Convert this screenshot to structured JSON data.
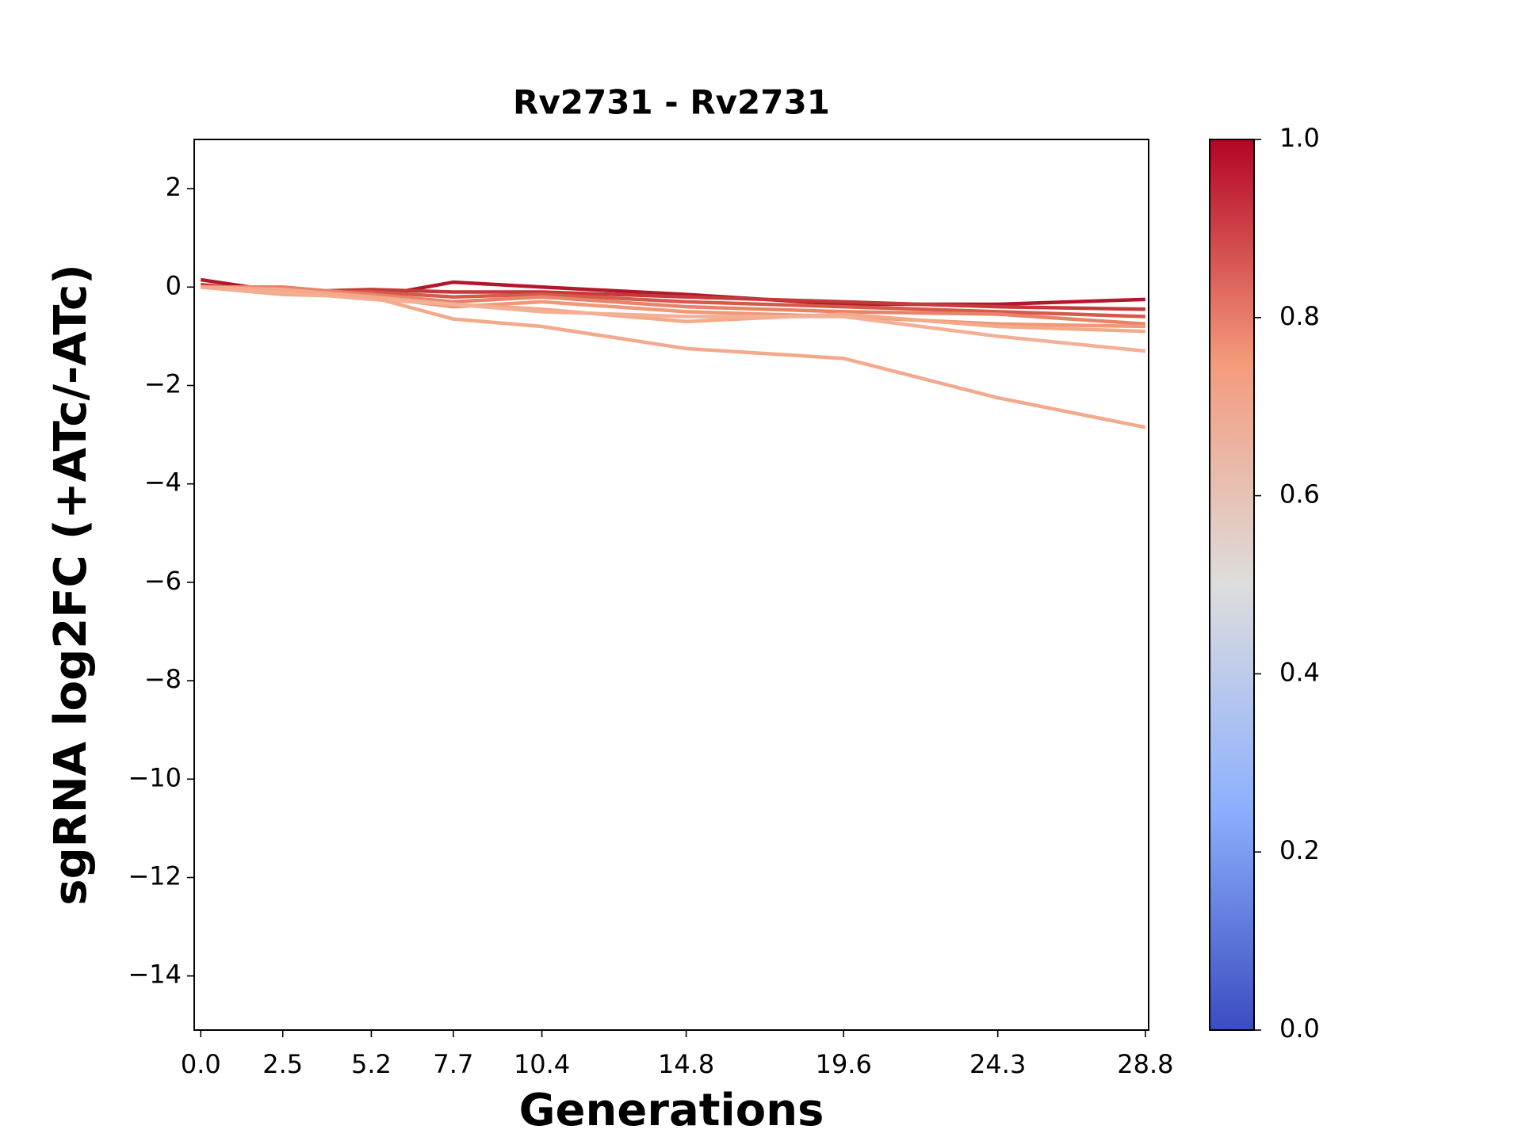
{
  "chart_data": {
    "type": "line",
    "title": "Rv2731 - Rv2731",
    "x_label": "Generations",
    "y_label": "sgRNA log2FC (+ATc/-ATc)",
    "x": [
      0,
      2.5,
      5.2,
      7.7,
      10.4,
      14.8,
      19.6,
      24.3,
      28.8
    ],
    "series": [
      {
        "color": "#b2182b",
        "values": [
          0.15,
          -0.1,
          -0.2,
          0.1,
          0.0,
          -0.15,
          -0.35,
          -0.35,
          -0.25
        ]
      },
      {
        "color": "#c43a3a",
        "values": [
          0.05,
          -0.1,
          -0.05,
          -0.1,
          -0.1,
          -0.2,
          -0.3,
          -0.4,
          -0.45
        ]
      },
      {
        "color": "#d65a4a",
        "values": [
          0.0,
          -0.1,
          -0.1,
          -0.2,
          -0.15,
          -0.3,
          -0.4,
          -0.5,
          -0.6
        ]
      },
      {
        "color": "#e8836a",
        "values": [
          0.0,
          0.0,
          -0.15,
          -0.3,
          -0.2,
          -0.4,
          -0.5,
          -0.55,
          -0.75
        ]
      },
      {
        "color": "#f09878",
        "values": [
          0.0,
          -0.05,
          -0.2,
          -0.4,
          -0.3,
          -0.5,
          -0.6,
          -0.75,
          -0.8
        ]
      },
      {
        "color": "#f4a988",
        "values": [
          0.0,
          -0.15,
          -0.2,
          -0.35,
          -0.45,
          -0.7,
          -0.55,
          -0.8,
          -0.9
        ]
      },
      {
        "color": "#f4b096",
        "values": [
          0.0,
          -0.1,
          -0.25,
          -0.35,
          -0.5,
          -0.6,
          -0.6,
          -1.0,
          -1.3
        ]
      },
      {
        "color": "#f2a98c",
        "values": [
          0.0,
          -0.05,
          -0.2,
          -0.65,
          -0.8,
          -1.25,
          -1.45,
          -2.25,
          -2.85
        ]
      }
    ],
    "xlim": [
      -0.2,
      28.9
    ],
    "xticks": [
      {
        "value": 0,
        "label": "0.0"
      },
      2.5,
      5.2,
      7.7,
      10.4,
      14.8,
      19.6,
      24.3,
      28.8
    ],
    "ylim": [
      -15.1,
      3
    ],
    "yticks": [
      {
        "value": -14,
        "label": "−14"
      },
      {
        "value": -12,
        "label": "−12"
      },
      {
        "value": -10,
        "label": "−10"
      },
      {
        "value": -8,
        "label": "−8"
      },
      {
        "value": -6,
        "label": "−6"
      },
      {
        "value": -4,
        "label": "−4"
      },
      {
        "value": -2,
        "label": "−2"
      },
      0,
      2
    ],
    "colorbar": {
      "clim": [
        0,
        1
      ],
      "ticks": [
        {
          "value": 0,
          "label": "0.0"
        },
        {
          "value": 0.2,
          "label": "0.2"
        },
        {
          "value": 0.4,
          "label": "0.4"
        },
        {
          "value": 0.6,
          "label": "0.6"
        },
        {
          "value": 0.8,
          "label": "0.8"
        },
        {
          "value": 1,
          "label": "1.0"
        }
      ],
      "colors": [
        "#3b4cc0",
        "#8db0fe",
        "#dddddd",
        "#f49a7b",
        "#b40426"
      ]
    }
  }
}
